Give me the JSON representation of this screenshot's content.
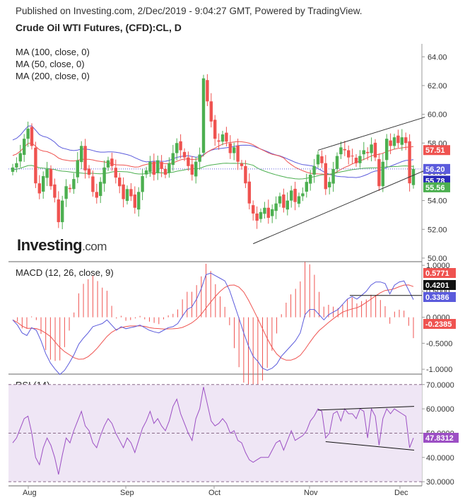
{
  "header": {
    "published": "Published on Investing.com, 2/Dec/2019 - 9:04:27 GMT, Powered by TradingView.",
    "title": "Crude Oil WTI Futures, (CFD):CL, D"
  },
  "logo": {
    "main": "Investing",
    "suffix": ".com"
  },
  "colors": {
    "bull": "#4caf50",
    "bear": "#ef5350",
    "ma100": "#ef5350",
    "ma50": "#4caf50",
    "ma200": "#5b5bdc",
    "macd": "#5b5bdc",
    "signal": "#ef5350",
    "rsi": "#9c4fc4",
    "rsi_band": "#efe6f5",
    "trendline": "#333333"
  },
  "chart_data": [
    {
      "type": "candlestick",
      "title": "Crude Oil WTI Futures, (CFD):CL, D",
      "legend": [
        "MA (100, close, 0)",
        "MA (50, close, 0)",
        "MA (200, close, 0)"
      ],
      "y_ticks": [
        "64.00",
        "62.00",
        "60.00",
        "58.00",
        "56.00",
        "54.00",
        "52.00",
        "50.00"
      ],
      "ylim": [
        49.8,
        64.9
      ],
      "x_ticks": [
        "Aug",
        "Sep",
        "Oct",
        "Nov",
        "Dec"
      ],
      "price_labels": [
        {
          "text": "57.51",
          "value": 57.51,
          "color": "#ef5350"
        },
        {
          "text": "56.20",
          "value": 56.2,
          "color": "#5b5bdc"
        },
        {
          "text": "55.78",
          "value": 55.78,
          "color": "#2a2ab8"
        },
        {
          "text": "55.56",
          "value": 55.56,
          "color": "#4caf50"
        }
      ],
      "close": [
        56.3,
        56.6,
        57.3,
        58.3,
        59.0,
        57.8,
        55.2,
        54.5,
        55.7,
        56.2,
        55.0,
        54.2,
        52.5,
        54.0,
        55.0,
        54.8,
        55.5,
        56.8,
        57.8,
        56.1,
        55.8,
        54.6,
        54.2,
        55.3,
        56.3,
        56.8,
        56.4,
        55.6,
        55.0,
        54.1,
        54.8,
        54.3,
        53.5,
        54.6,
        55.7,
        56.1,
        56.7,
        55.8,
        56.8,
        56.2,
        55.8,
        56.6,
        57.3,
        58.0,
        57.5,
        57.0,
        56.4,
        55.8,
        56.7,
        57.2,
        62.5,
        60.9,
        59.5,
        58.3,
        58.1,
        58.6,
        58.1,
        57.3,
        57.7,
        56.7,
        56.4,
        55.2,
        53.8,
        53.1,
        52.6,
        53.2,
        53.5,
        52.8,
        53.4,
        53.8,
        54.3,
        53.5,
        54.0,
        54.7,
        53.9,
        54.3,
        54.5,
        55.3,
        55.8,
        56.4,
        57.2,
        56.6,
        54.8,
        55.3,
        56.2,
        57.1,
        57.7,
        57.5,
        57.0,
        57.1,
        56.6,
        57.1,
        57.5,
        57.3,
        57.9,
        57.0,
        55.0,
        56.7,
        58.3,
        57.8,
        58.4,
        58.0,
        58.4,
        58.0,
        55.2,
        56.2
      ],
      "ma100_range": [
        55.8,
        58.1
      ],
      "ma50_range": [
        55.5,
        56.6
      ],
      "ma200_range": [
        55.6,
        59.2
      ]
    },
    {
      "type": "line+bar",
      "title": "MACD (12, 26, close, 9)",
      "y_ticks": [
        "1.0000",
        "0.5000",
        "0.0000",
        "-0.5000",
        "-1.0000"
      ],
      "ylim": [
        -1.08,
        1.07
      ],
      "series": [
        {
          "name": "MACD",
          "last": 0.3386
        },
        {
          "name": "Signal",
          "last": 0.5771
        },
        {
          "name": "Histogram",
          "last": -0.2385
        }
      ],
      "labels": [
        {
          "text": "0.5771",
          "value": 0.5771,
          "color": "#ef5350"
        },
        {
          "text": "0.4201",
          "value": 0.4201,
          "color": "#111111"
        },
        {
          "text": "0.3386",
          "value": 0.3386,
          "color": "#5b5bdc"
        },
        {
          "text": "-0.2385",
          "value": -0.2385,
          "color": "#ef5350"
        }
      ],
      "macd": [
        -0.05,
        -0.15,
        -0.3,
        -0.35,
        -0.2,
        -0.25,
        -0.45,
        -0.7,
        -0.88,
        -1.0,
        -1.1,
        -1.02,
        -0.88,
        -0.72,
        -0.52,
        -0.4,
        -0.3,
        -0.18,
        -0.15,
        -0.12,
        -0.05,
        -0.15,
        -0.25,
        -0.18,
        -0.22,
        -0.2,
        -0.18,
        -0.15,
        -0.2,
        -0.25,
        -0.28,
        -0.3,
        -0.25,
        -0.2,
        -0.18,
        -0.12,
        0.02,
        0.15,
        0.2,
        0.35,
        0.55,
        0.82,
        0.85,
        0.8,
        0.75,
        0.7,
        0.52,
        0.25,
        -0.02,
        -0.3,
        -0.55,
        -0.75,
        -0.85,
        -0.98,
        -1.02,
        -0.98,
        -0.9,
        -0.75,
        -0.65,
        -0.55,
        -0.45,
        -0.3,
        0.05,
        0.15,
        0.15,
        0.05,
        -0.05,
        0.05,
        0.1,
        0.15,
        0.25,
        0.35,
        0.4,
        0.35,
        0.42,
        0.5,
        0.62,
        0.68,
        0.68,
        0.65,
        0.45,
        0.62,
        0.68,
        0.7,
        0.52,
        0.34
      ]
    },
    {
      "type": "line",
      "title": "RSI (14)",
      "y_ticks": [
        "70.0000",
        "60.0000",
        "50.0000",
        "40.0000",
        "30.0000"
      ],
      "ylim": [
        28.3,
        74.3
      ],
      "band": [
        30,
        70
      ],
      "labels": [
        {
          "text": "47.8312",
          "value": 47.8312,
          "color": "#9c4fc4"
        }
      ],
      "rsi": [
        46,
        48,
        52,
        56,
        57,
        50,
        40,
        37,
        44,
        48,
        45,
        40,
        33,
        41,
        48,
        46,
        51,
        55,
        59,
        53,
        51,
        46,
        44,
        49,
        53,
        56,
        54,
        50,
        47,
        44,
        48,
        46,
        42,
        47,
        52,
        55,
        59,
        54,
        56,
        53,
        51,
        55,
        61,
        64,
        58,
        54,
        50,
        47,
        56,
        60,
        69,
        62,
        55,
        53,
        54,
        56,
        54,
        50,
        51,
        47,
        46,
        42,
        39,
        38,
        39,
        40,
        40,
        40,
        43,
        46,
        47,
        43,
        47,
        51,
        47,
        48,
        49,
        51,
        55,
        57,
        60,
        59,
        48,
        50,
        58,
        59,
        55,
        60,
        58,
        58,
        56,
        60,
        59,
        48,
        60,
        57,
        45,
        56,
        60,
        58,
        60,
        59,
        58,
        57,
        44,
        48
      ]
    }
  ]
}
